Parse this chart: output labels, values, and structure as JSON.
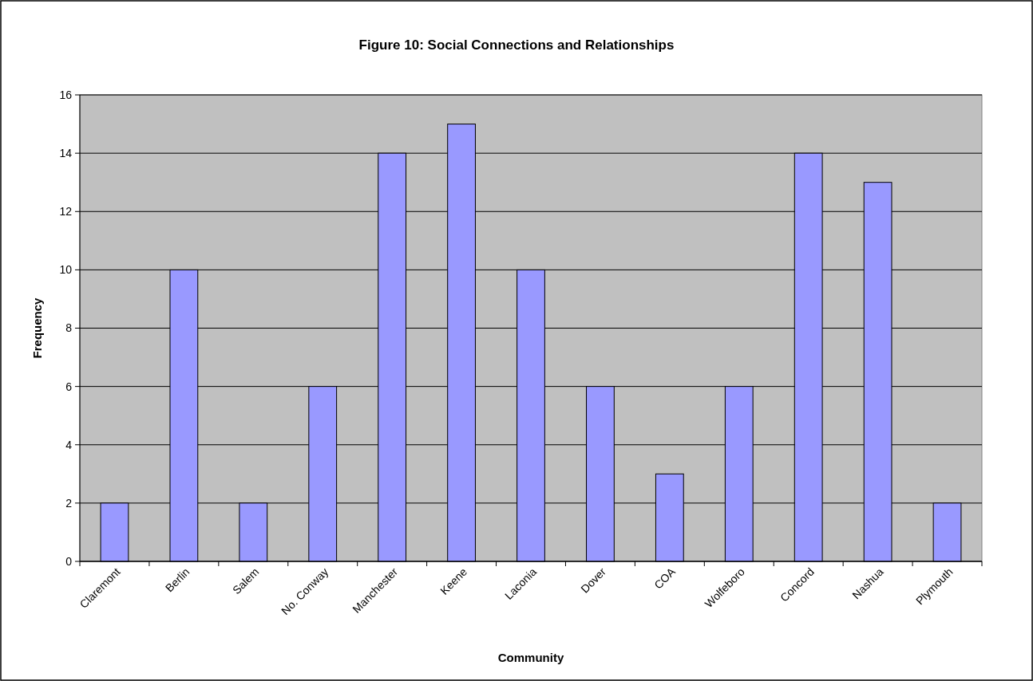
{
  "chart_data": {
    "type": "bar",
    "title": "Figure 10: Social Connections and Relationships",
    "xlabel": "Community",
    "ylabel": "Frequency",
    "categories": [
      "Claremont",
      "Berlin",
      "Salem",
      "No. Conway",
      "Manchester",
      "Keene",
      "Laconia",
      "Dover",
      "COA",
      "Wolfeboro",
      "Concord",
      "Nashua",
      "Plymouth"
    ],
    "values": [
      2,
      10,
      2,
      6,
      14,
      15,
      10,
      6,
      3,
      6,
      14,
      13,
      2
    ],
    "color": "#9999ff",
    "ylim": [
      0,
      16
    ],
    "yticks": [
      0,
      2,
      4,
      6,
      8,
      10,
      12,
      14,
      16
    ],
    "grid": "y"
  }
}
